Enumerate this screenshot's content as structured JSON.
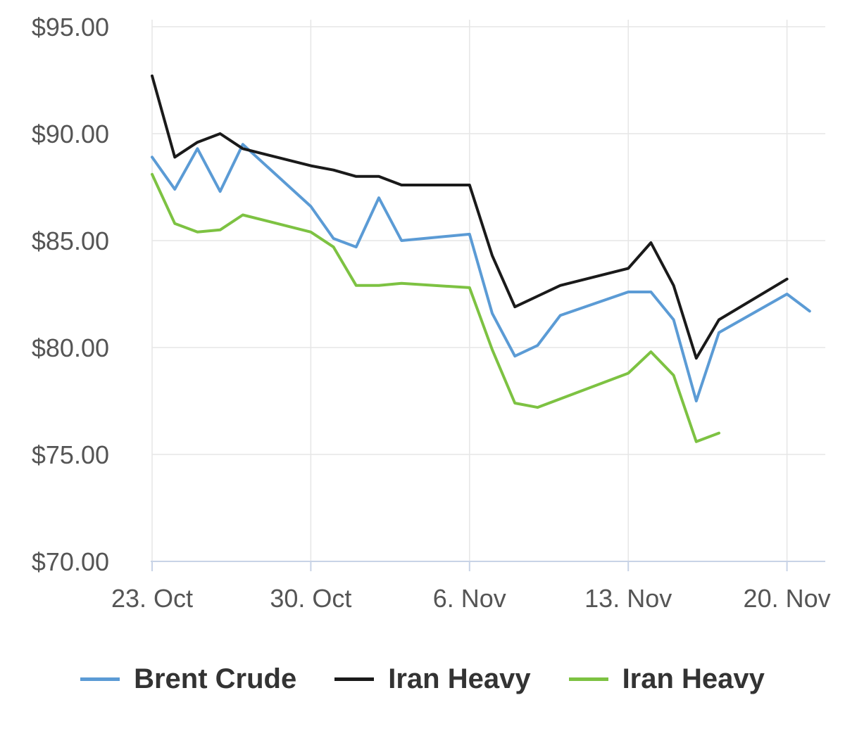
{
  "chart_data": {
    "type": "line",
    "title": "",
    "xlabel": "",
    "ylabel": "",
    "ylim": [
      70,
      95
    ],
    "yticks": [
      "$70.00",
      "$75.00",
      "$80.00",
      "$85.00",
      "$90.00",
      "$95.00"
    ],
    "ytick_values": [
      70,
      75,
      80,
      85,
      90,
      95
    ],
    "xticks": [
      "23. Oct",
      "30. Oct",
      "6. Nov",
      "13. Nov",
      "20. Nov"
    ],
    "xtick_dates": [
      "2023-10-23",
      "2023-10-30",
      "2023-11-06",
      "2023-11-13",
      "2023-11-20"
    ],
    "xlim": [
      "2023-10-23",
      "2023-11-21"
    ],
    "grid": true,
    "legend_position": "bottom",
    "series": [
      {
        "name": "Brent Crude",
        "color": "#5b9bd5",
        "points": [
          {
            "x": "2023-10-23",
            "y": 88.9
          },
          {
            "x": "2023-10-24",
            "y": 87.4
          },
          {
            "x": "2023-10-25",
            "y": 89.3
          },
          {
            "x": "2023-10-26",
            "y": 87.3
          },
          {
            "x": "2023-10-27",
            "y": 89.5
          },
          {
            "x": "2023-10-30",
            "y": 86.6
          },
          {
            "x": "2023-10-31",
            "y": 85.1
          },
          {
            "x": "2023-11-01",
            "y": 84.7
          },
          {
            "x": "2023-11-02",
            "y": 87.0
          },
          {
            "x": "2023-11-03",
            "y": 85.0
          },
          {
            "x": "2023-11-06",
            "y": 85.3
          },
          {
            "x": "2023-11-07",
            "y": 81.6
          },
          {
            "x": "2023-11-08",
            "y": 79.6
          },
          {
            "x": "2023-11-09",
            "y": 80.1
          },
          {
            "x": "2023-11-10",
            "y": 81.5
          },
          {
            "x": "2023-11-13",
            "y": 82.6
          },
          {
            "x": "2023-11-14",
            "y": 82.6
          },
          {
            "x": "2023-11-15",
            "y": 81.3
          },
          {
            "x": "2023-11-16",
            "y": 77.5
          },
          {
            "x": "2023-11-17",
            "y": 80.7
          },
          {
            "x": "2023-11-20",
            "y": 82.5
          },
          {
            "x": "2023-11-21",
            "y": 81.7
          }
        ]
      },
      {
        "name": "Iran Heavy",
        "color": "#1a1a1a",
        "points": [
          {
            "x": "2023-10-23",
            "y": 92.7
          },
          {
            "x": "2023-10-24",
            "y": 88.9
          },
          {
            "x": "2023-10-25",
            "y": 89.6
          },
          {
            "x": "2023-10-26",
            "y": 90.0
          },
          {
            "x": "2023-10-27",
            "y": 89.3
          },
          {
            "x": "2023-10-30",
            "y": 88.5
          },
          {
            "x": "2023-10-31",
            "y": 88.3
          },
          {
            "x": "2023-11-01",
            "y": 88.0
          },
          {
            "x": "2023-11-02",
            "y": 88.0
          },
          {
            "x": "2023-11-03",
            "y": 87.6
          },
          {
            "x": "2023-11-06",
            "y": 87.6
          },
          {
            "x": "2023-11-07",
            "y": 84.3
          },
          {
            "x": "2023-11-08",
            "y": 81.9
          },
          {
            "x": "2023-11-09",
            "y": 82.4
          },
          {
            "x": "2023-11-10",
            "y": 82.9
          },
          {
            "x": "2023-11-13",
            "y": 83.7
          },
          {
            "x": "2023-11-14",
            "y": 84.9
          },
          {
            "x": "2023-11-15",
            "y": 82.9
          },
          {
            "x": "2023-11-16",
            "y": 79.5
          },
          {
            "x": "2023-11-17",
            "y": 81.3
          },
          {
            "x": "2023-11-20",
            "y": 83.2
          }
        ]
      },
      {
        "name": "Iran Heavy",
        "color": "#7dc242",
        "points": [
          {
            "x": "2023-10-23",
            "y": 88.1
          },
          {
            "x": "2023-10-24",
            "y": 85.8
          },
          {
            "x": "2023-10-25",
            "y": 85.4
          },
          {
            "x": "2023-10-26",
            "y": 85.5
          },
          {
            "x": "2023-10-27",
            "y": 86.2
          },
          {
            "x": "2023-10-30",
            "y": 85.4
          },
          {
            "x": "2023-10-31",
            "y": 84.7
          },
          {
            "x": "2023-11-01",
            "y": 82.9
          },
          {
            "x": "2023-11-02",
            "y": 82.9
          },
          {
            "x": "2023-11-03",
            "y": 83.0
          },
          {
            "x": "2023-11-06",
            "y": 82.8
          },
          {
            "x": "2023-11-07",
            "y": 79.9
          },
          {
            "x": "2023-11-08",
            "y": 77.4
          },
          {
            "x": "2023-11-09",
            "y": 77.2
          },
          {
            "x": "2023-11-10",
            "y": 77.6
          },
          {
            "x": "2023-11-13",
            "y": 78.8
          },
          {
            "x": "2023-11-14",
            "y": 79.8
          },
          {
            "x": "2023-11-15",
            "y": 78.7
          },
          {
            "x": "2023-11-16",
            "y": 75.6
          },
          {
            "x": "2023-11-17",
            "y": 76.0
          }
        ]
      }
    ]
  }
}
